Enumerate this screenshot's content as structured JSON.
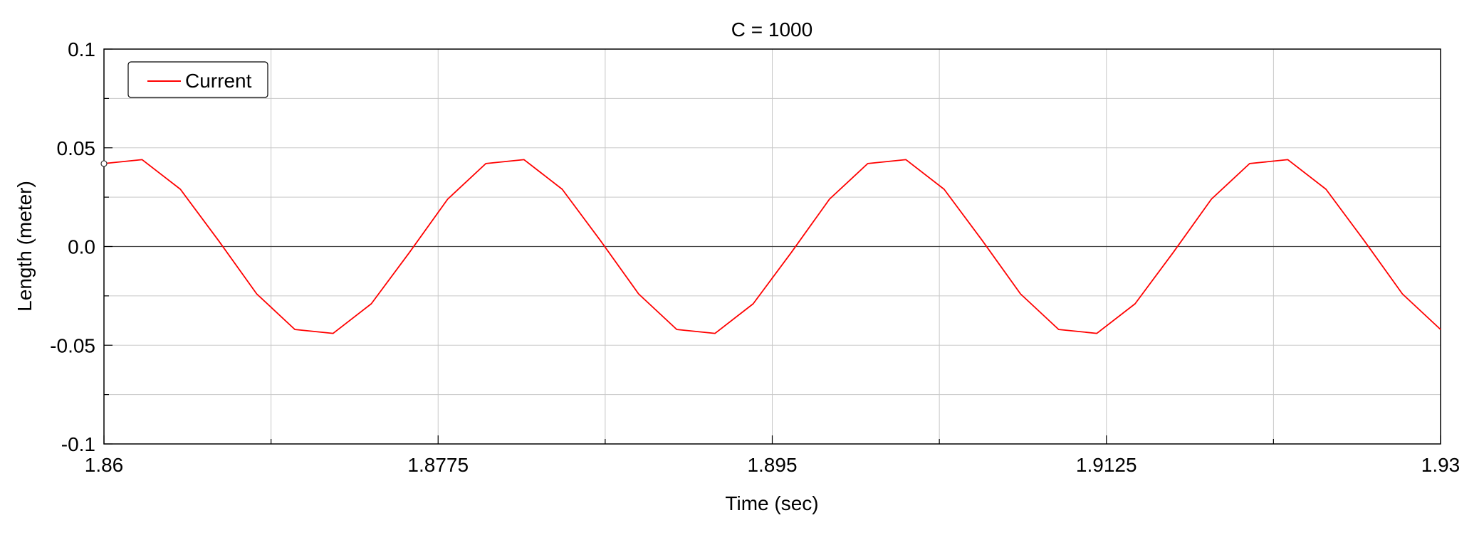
{
  "chart_data": {
    "type": "line",
    "title": "C = 1000",
    "xlabel": "Time (sec)",
    "ylabel": "Length (meter)",
    "xlim": [
      1.86,
      1.93
    ],
    "ylim": [
      -0.1,
      0.1
    ],
    "x_ticks": [
      "1.86",
      "1.8775",
      "1.895",
      "1.9125",
      "1.93"
    ],
    "y_ticks": [
      "0.1",
      "0.05",
      "0.0",
      "-0.05",
      "-0.1"
    ],
    "grid": true,
    "legend_position": "top-left",
    "series": [
      {
        "name": "Current",
        "color": "#ff0000",
        "x": [
          1.86,
          1.862,
          1.864,
          1.866,
          1.868,
          1.87,
          1.872,
          1.874,
          1.876,
          1.878,
          1.88,
          1.882,
          1.884,
          1.886,
          1.888,
          1.89,
          1.892,
          1.894,
          1.896,
          1.898,
          1.9,
          1.902,
          1.904,
          1.906,
          1.908,
          1.91,
          1.912,
          1.914,
          1.916,
          1.918,
          1.92,
          1.922,
          1.924,
          1.926,
          1.928,
          1.93
        ],
        "y": [
          0.042,
          0.044,
          0.029,
          0.003,
          -0.024,
          -0.042,
          -0.044,
          -0.029,
          -0.003,
          0.024,
          0.042,
          0.044,
          0.029,
          0.003,
          -0.024,
          -0.042,
          -0.044,
          -0.029,
          -0.003,
          0.024,
          0.042,
          0.044,
          0.029,
          0.003,
          -0.024,
          -0.042,
          -0.044,
          -0.029,
          -0.003,
          0.024,
          0.042,
          0.044,
          0.029,
          0.003,
          -0.024,
          -0.042
        ]
      }
    ]
  }
}
